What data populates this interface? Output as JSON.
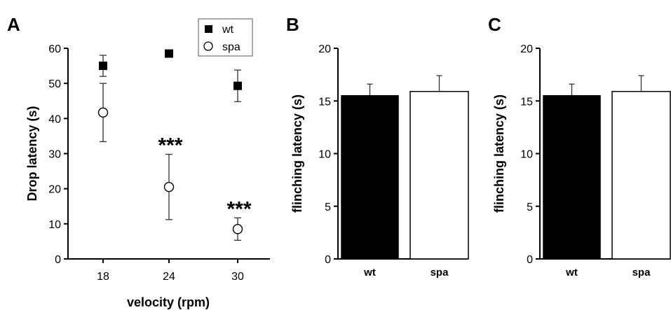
{
  "chart_data": [
    {
      "panel": "A",
      "type": "scatter",
      "xlabel": "velocity (rpm)",
      "ylabel": "Drop latency (s)",
      "ylim": [
        0,
        60
      ],
      "yticks": [
        0,
        10,
        20,
        30,
        40,
        50,
        60
      ],
      "categories": [
        "18",
        "24",
        "30"
      ],
      "legend": {
        "placement": "top-right"
      },
      "series": [
        {
          "name": "wt",
          "marker": "filled-square",
          "color": "#000000",
          "values": [
            55,
            58.5,
            49.3
          ],
          "errors": [
            3,
            0,
            4.5
          ]
        },
        {
          "name": "spa",
          "marker": "open-circle",
          "color": "#000000",
          "values": [
            41.7,
            20.5,
            8.5
          ],
          "errors": [
            8.3,
            9.3,
            3.2
          ]
        }
      ],
      "annotations": [
        {
          "category": "24",
          "text": "***"
        },
        {
          "category": "30",
          "text": "***"
        }
      ]
    },
    {
      "panel": "B",
      "type": "bar",
      "ylabel": "flinching latency (s)",
      "ylim": [
        0,
        20
      ],
      "yticks": [
        0,
        5,
        10,
        15,
        20
      ],
      "categories": [
        "wt",
        "spa"
      ],
      "values": [
        15.5,
        15.9
      ],
      "errors": [
        1.1,
        1.5
      ],
      "fills": [
        "#000000",
        "#ffffff"
      ]
    },
    {
      "panel": "C",
      "type": "bar",
      "ylabel": "flinching latency (s)",
      "ylim": [
        0,
        20
      ],
      "yticks": [
        0,
        5,
        10,
        15,
        20
      ],
      "categories": [
        "wt",
        "spa"
      ],
      "values": [
        15.5,
        15.9
      ],
      "errors": [
        1.1,
        1.5
      ],
      "fills": [
        "#000000",
        "#ffffff"
      ]
    }
  ]
}
